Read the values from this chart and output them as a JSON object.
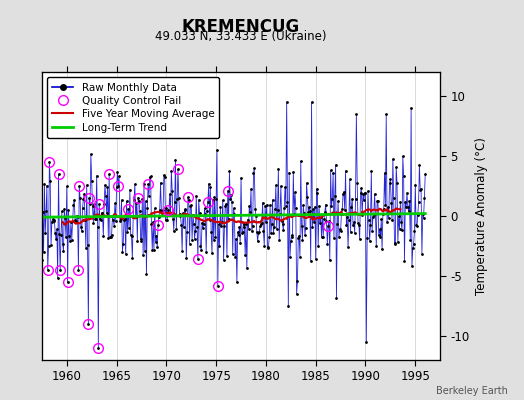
{
  "title": "KREMENCUG",
  "subtitle": "49.033 N, 33.433 E (Ukraine)",
  "ylabel": "Temperature Anomaly (°C)",
  "watermark": "Berkeley Earth",
  "background_color": "#e0e0e0",
  "plot_bg_color": "#ffffff",
  "xlim": [
    1957.5,
    1997.5
  ],
  "ylim": [
    -12,
    12
  ],
  "yticks": [
    -10,
    -5,
    0,
    5,
    10
  ],
  "xticks": [
    1960,
    1965,
    1970,
    1975,
    1980,
    1985,
    1990,
    1995
  ],
  "line_color": "#0000cc",
  "marker_color": "#000000",
  "qc_color": "#ff00ff",
  "moving_avg_color": "#cc0000",
  "trend_color": "#00cc00",
  "seed": 77,
  "n_months": 468,
  "start_year": 1957.083
}
